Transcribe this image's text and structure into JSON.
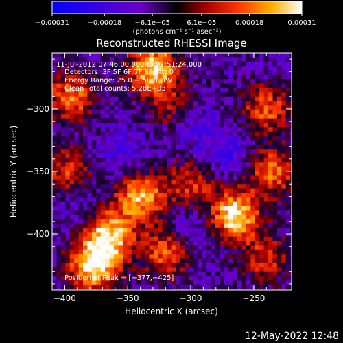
{
  "chart_data": {
    "type": "heatmap",
    "title": "Reconstructed RHESSI Image",
    "xlabel": "Heliocentric X (arcsec)",
    "ylabel": "Heliocentric Y (arcsec)",
    "xlim": [
      -410,
      -220
    ],
    "ylim": [
      -445,
      -255
    ],
    "x_ticks": [
      -400,
      -350,
      -300,
      -250
    ],
    "y_ticks": [
      -300,
      -350,
      -400
    ],
    "x_tick_labels": [
      "−400",
      "−350",
      "−300",
      "−250"
    ],
    "y_tick_labels": [
      "−300",
      "−350",
      "−400"
    ],
    "colorbar": {
      "range": [
        -0.00031,
        0.00031
      ],
      "tick_labels": [
        "−0.00031",
        "−0.00018",
        "−6.1e−05",
        "6.1e−05",
        "0.00018",
        "0.00031"
      ],
      "unit_label": "(photons cm⁻² s⁻¹ asec⁻²)"
    },
    "annotations": [
      "11-Jul-2012 07:46:00.000 to 07:51:24.000",
      "Detectors: 3F 5F 6F 7F 8F, Att 0",
      "Energy Range: 25.0 − 50.0 keV",
      "Clean    Total counts: 5.28E+03"
    ],
    "peak_label": "Position of Peak = [−377,−425]",
    "peak": [
      -377,
      -425
    ],
    "grid": false,
    "hot_spots": [
      {
        "x": -395,
        "y": -290,
        "v": 0.00018
      },
      {
        "x": -330,
        "y": -268,
        "v": 0.00028
      },
      {
        "x": -312,
        "y": -300,
        "v": 0.0001
      },
      {
        "x": -240,
        "y": -300,
        "v": 0.00016
      },
      {
        "x": -235,
        "y": -350,
        "v": 0.00018
      },
      {
        "x": -398,
        "y": -350,
        "v": 0.00013
      },
      {
        "x": -340,
        "y": -370,
        "v": 0.00024
      },
      {
        "x": -300,
        "y": -360,
        "v": 0.00012
      },
      {
        "x": -265,
        "y": -385,
        "v": 0.00031
      },
      {
        "x": -365,
        "y": -400,
        "v": 0.00026
      },
      {
        "x": -377,
        "y": -425,
        "v": 0.00031
      },
      {
        "x": -320,
        "y": -415,
        "v": 0.00016
      },
      {
        "x": -240,
        "y": -420,
        "v": 0.00012
      }
    ],
    "cold_spots": [
      {
        "x": -300,
        "y": -310,
        "v": -0.00012
      },
      {
        "x": -355,
        "y": -335,
        "v": -9e-05
      },
      {
        "x": -270,
        "y": -335,
        "v": -0.0001
      },
      {
        "x": -300,
        "y": -395,
        "v": -9e-05
      },
      {
        "x": -390,
        "y": -375,
        "v": -6e-05
      }
    ]
  },
  "footer": {
    "timestamp": "12-May-2022 12:48"
  }
}
